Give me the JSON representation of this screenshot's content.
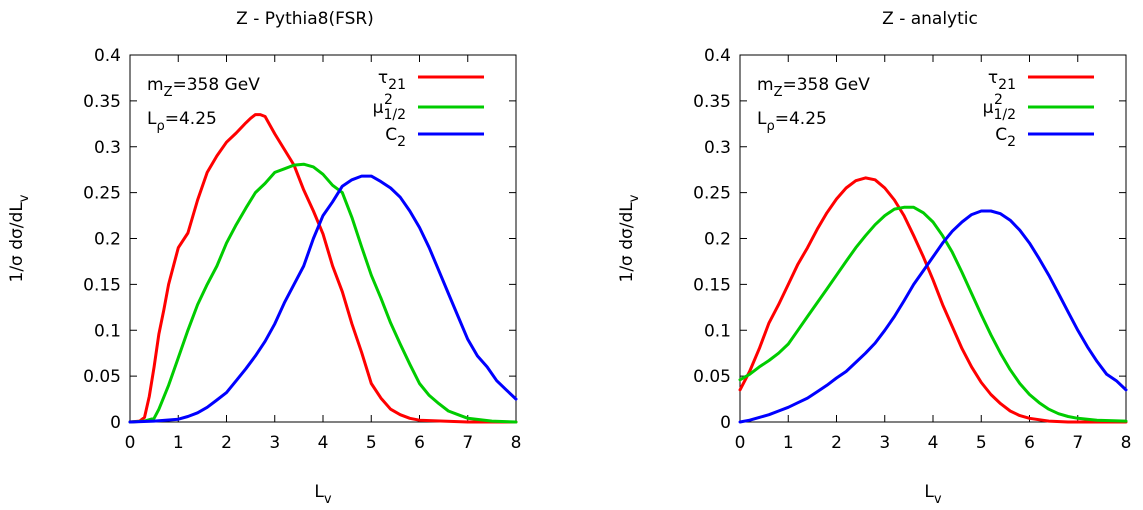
{
  "chart_data": [
    {
      "type": "line",
      "title": "Z - Pythia8(FSR)",
      "xlabel": "L_v",
      "ylabel": "1/σ dσ/dL_v",
      "xlim": [
        0,
        8
      ],
      "ylim": [
        0,
        0.4
      ],
      "xticks": [
        "0",
        "1",
        "2",
        "3",
        "4",
        "5",
        "6",
        "7",
        "8"
      ],
      "yticks": [
        "0",
        "0.05",
        "0.1",
        "0.15",
        "0.2",
        "0.25",
        "0.3",
        "0.35",
        "0.4"
      ],
      "grid": false,
      "legend_position": "top-right",
      "annotations": {
        "mass": "m_Z=358 GeV",
        "lrho": "L_ρ=4.25"
      },
      "series": [
        {
          "name": "τ_21",
          "color": "#ff0000",
          "x": [
            0,
            0.2,
            0.3,
            0.4,
            0.5,
            0.6,
            0.7,
            0.8,
            1.0,
            1.2,
            1.4,
            1.6,
            1.8,
            2.0,
            2.2,
            2.4,
            2.5,
            2.6,
            2.7,
            2.8,
            3.0,
            3.2,
            3.4,
            3.6,
            3.8,
            4.0,
            4.2,
            4.4,
            4.6,
            4.8,
            5.0,
            5.2,
            5.4,
            5.6,
            5.8,
            6.0,
            6.5,
            7.0,
            8.0
          ],
          "y": [
            0,
            0.001,
            0.005,
            0.028,
            0.06,
            0.096,
            0.122,
            0.15,
            0.19,
            0.206,
            0.242,
            0.272,
            0.29,
            0.305,
            0.315,
            0.326,
            0.331,
            0.335,
            0.335,
            0.333,
            0.314,
            0.297,
            0.28,
            0.253,
            0.23,
            0.205,
            0.17,
            0.142,
            0.107,
            0.076,
            0.042,
            0.026,
            0.014,
            0.008,
            0.004,
            0.002,
            0.001,
            0.0,
            0.0
          ]
        },
        {
          "name": "μ_1/2^2",
          "color": "#00cc00",
          "x": [
            0,
            0.3,
            0.5,
            0.6,
            0.8,
            1.0,
            1.2,
            1.4,
            1.6,
            1.8,
            2.0,
            2.2,
            2.4,
            2.6,
            2.8,
            3.0,
            3.2,
            3.4,
            3.6,
            3.8,
            4.0,
            4.2,
            4.4,
            4.6,
            4.8,
            5.0,
            5.2,
            5.4,
            5.6,
            5.8,
            6.0,
            6.2,
            6.4,
            6.6,
            6.8,
            7.0,
            7.5,
            8.0
          ],
          "y": [
            0,
            0.001,
            0.004,
            0.014,
            0.04,
            0.07,
            0.1,
            0.128,
            0.15,
            0.17,
            0.195,
            0.215,
            0.233,
            0.25,
            0.26,
            0.272,
            0.276,
            0.28,
            0.281,
            0.278,
            0.27,
            0.258,
            0.25,
            0.223,
            0.191,
            0.16,
            0.135,
            0.108,
            0.085,
            0.063,
            0.042,
            0.029,
            0.02,
            0.012,
            0.008,
            0.004,
            0.001,
            0.0
          ]
        },
        {
          "name": "C_2",
          "color": "#0000ff",
          "x": [
            0,
            0.5,
            1.0,
            1.2,
            1.4,
            1.6,
            1.8,
            2.0,
            2.2,
            2.4,
            2.6,
            2.8,
            3.0,
            3.2,
            3.4,
            3.6,
            3.8,
            4.0,
            4.2,
            4.4,
            4.6,
            4.8,
            5.0,
            5.2,
            5.4,
            5.6,
            5.8,
            6.0,
            6.2,
            6.4,
            6.6,
            6.8,
            7.0,
            7.2,
            7.4,
            7.6,
            7.8,
            8.0
          ],
          "y": [
            0,
            0.001,
            0.003,
            0.006,
            0.01,
            0.016,
            0.024,
            0.032,
            0.045,
            0.058,
            0.072,
            0.088,
            0.107,
            0.13,
            0.15,
            0.17,
            0.2,
            0.225,
            0.24,
            0.257,
            0.264,
            0.268,
            0.268,
            0.262,
            0.255,
            0.245,
            0.23,
            0.212,
            0.19,
            0.165,
            0.14,
            0.115,
            0.09,
            0.072,
            0.06,
            0.045,
            0.035,
            0.025
          ]
        }
      ]
    },
    {
      "type": "line",
      "title": "Z - analytic",
      "xlabel": "L_v",
      "ylabel": "1/σ dσ/dL_v",
      "xlim": [
        0,
        8
      ],
      "ylim": [
        0,
        0.4
      ],
      "xticks": [
        "0",
        "1",
        "2",
        "3",
        "4",
        "5",
        "6",
        "7",
        "8"
      ],
      "yticks": [
        "0",
        "0.05",
        "0.1",
        "0.15",
        "0.2",
        "0.25",
        "0.3",
        "0.35",
        "0.4"
      ],
      "grid": false,
      "legend_position": "top-right",
      "annotations": {
        "mass": "m_Z=358 GeV",
        "lrho": "L_ρ=4.25"
      },
      "series": [
        {
          "name": "τ_21",
          "color": "#ff0000",
          "x": [
            0,
            0.2,
            0.4,
            0.6,
            0.8,
            1.0,
            1.2,
            1.4,
            1.6,
            1.8,
            2.0,
            2.2,
            2.4,
            2.6,
            2.8,
            3.0,
            3.2,
            3.4,
            3.6,
            3.8,
            4.0,
            4.2,
            4.4,
            4.6,
            4.8,
            5.0,
            5.2,
            5.4,
            5.6,
            5.8,
            6.0,
            6.4,
            6.8,
            7.2,
            8.0
          ],
          "y": [
            0.035,
            0.055,
            0.08,
            0.108,
            0.128,
            0.15,
            0.172,
            0.19,
            0.21,
            0.228,
            0.243,
            0.255,
            0.263,
            0.266,
            0.264,
            0.255,
            0.242,
            0.225,
            0.203,
            0.18,
            0.155,
            0.128,
            0.104,
            0.08,
            0.06,
            0.043,
            0.03,
            0.02,
            0.012,
            0.007,
            0.004,
            0.001,
            0.0,
            0.0,
            0.0
          ]
        },
        {
          "name": "μ_1/2^2",
          "color": "#00cc00",
          "x": [
            0,
            0.2,
            0.4,
            0.6,
            0.8,
            1.0,
            1.2,
            1.4,
            1.6,
            1.8,
            2.0,
            2.2,
            2.4,
            2.6,
            2.8,
            3.0,
            3.2,
            3.4,
            3.6,
            3.8,
            4.0,
            4.2,
            4.4,
            4.6,
            4.8,
            5.0,
            5.2,
            5.4,
            5.6,
            5.8,
            6.0,
            6.2,
            6.4,
            6.6,
            6.8,
            7.0,
            7.4,
            8.0
          ],
          "y": [
            0.046,
            0.052,
            0.06,
            0.067,
            0.075,
            0.085,
            0.1,
            0.115,
            0.13,
            0.145,
            0.16,
            0.175,
            0.19,
            0.203,
            0.215,
            0.225,
            0.232,
            0.234,
            0.234,
            0.228,
            0.218,
            0.203,
            0.185,
            0.163,
            0.14,
            0.117,
            0.095,
            0.075,
            0.057,
            0.042,
            0.03,
            0.021,
            0.014,
            0.009,
            0.006,
            0.004,
            0.002,
            0.001
          ]
        },
        {
          "name": "C_2",
          "color": "#0000ff",
          "x": [
            0,
            0.2,
            0.4,
            0.6,
            0.8,
            1.0,
            1.2,
            1.4,
            1.6,
            1.8,
            2.0,
            2.2,
            2.4,
            2.6,
            2.8,
            3.0,
            3.2,
            3.4,
            3.6,
            3.8,
            4.0,
            4.2,
            4.4,
            4.6,
            4.8,
            5.0,
            5.2,
            5.4,
            5.6,
            5.8,
            6.0,
            6.2,
            6.4,
            6.6,
            6.8,
            7.0,
            7.2,
            7.4,
            7.6,
            7.8,
            8.0
          ],
          "y": [
            0.0,
            0.002,
            0.005,
            0.008,
            0.012,
            0.016,
            0.021,
            0.026,
            0.033,
            0.04,
            0.048,
            0.055,
            0.065,
            0.075,
            0.086,
            0.1,
            0.115,
            0.132,
            0.15,
            0.165,
            0.18,
            0.195,
            0.208,
            0.218,
            0.226,
            0.23,
            0.23,
            0.227,
            0.22,
            0.209,
            0.195,
            0.178,
            0.16,
            0.14,
            0.12,
            0.1,
            0.082,
            0.066,
            0.052,
            0.045,
            0.035
          ]
        }
      ]
    }
  ]
}
